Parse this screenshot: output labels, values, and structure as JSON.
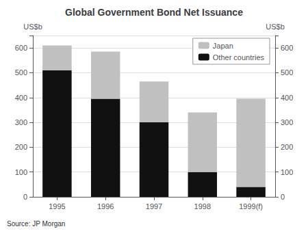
{
  "chart_data": {
    "type": "bar",
    "title": "Global Government Bond Net Issuance",
    "categories": [
      "1995",
      "1996",
      "1997",
      "1998",
      "1999(f)"
    ],
    "series": [
      {
        "name": "Other countries",
        "color": "#111111",
        "values": [
          510,
          395,
          300,
          100,
          40
        ]
      },
      {
        "name": "Japan",
        "color": "#c0c0c0",
        "values": [
          100,
          190,
          165,
          240,
          355
        ]
      }
    ],
    "stacked": true,
    "ylabel": "US$b",
    "y2label": "US$b",
    "source": "Source: JP Morgan",
    "ylim": [
      0,
      650
    ],
    "yticks": [
      0,
      100,
      200,
      300,
      400,
      500,
      600
    ],
    "y2lim": [
      0,
      650
    ],
    "y2ticks": [
      0,
      100,
      200,
      300,
      400,
      500,
      600
    ],
    "grid": true,
    "legend": "upper right"
  }
}
